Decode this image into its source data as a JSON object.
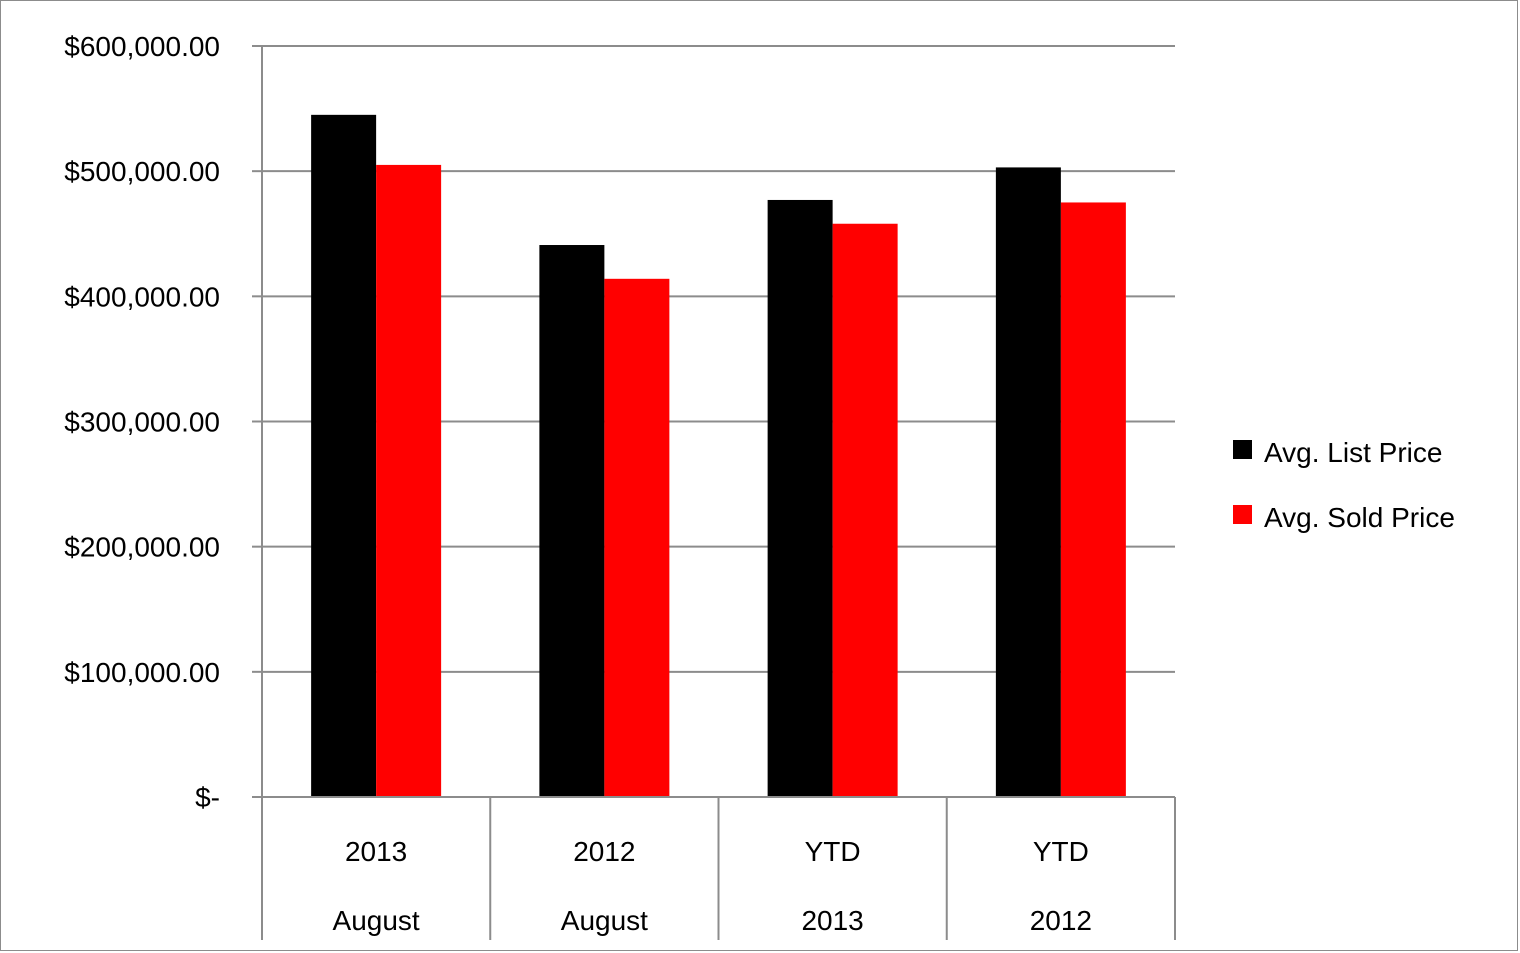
{
  "chart_data": {
    "type": "bar",
    "title": "",
    "xlabel": "",
    "ylabel": "",
    "ylim": [
      0,
      600000
    ],
    "yticks": [
      0,
      100000,
      200000,
      300000,
      400000,
      500000,
      600000
    ],
    "ytick_labels": [
      "$-",
      "$100,000.00",
      "$200,000.00",
      "$300,000.00",
      "$400,000.00",
      "$500,000.00",
      "$600,000.00"
    ],
    "categories": [
      {
        "line1": "2013",
        "line2": "August"
      },
      {
        "line1": "2012",
        "line2": "August"
      },
      {
        "line1": "YTD",
        "line2": "2013"
      },
      {
        "line1": "YTD",
        "line2": "2012"
      }
    ],
    "series": [
      {
        "name": "Avg. List Price",
        "color": "#000000",
        "values": [
          545000,
          441000,
          477000,
          503000
        ]
      },
      {
        "name": "Avg. Sold Price",
        "color": "#ff0000",
        "values": [
          505000,
          414000,
          458000,
          475000
        ]
      }
    ],
    "grid": true,
    "legend_position": "right"
  }
}
